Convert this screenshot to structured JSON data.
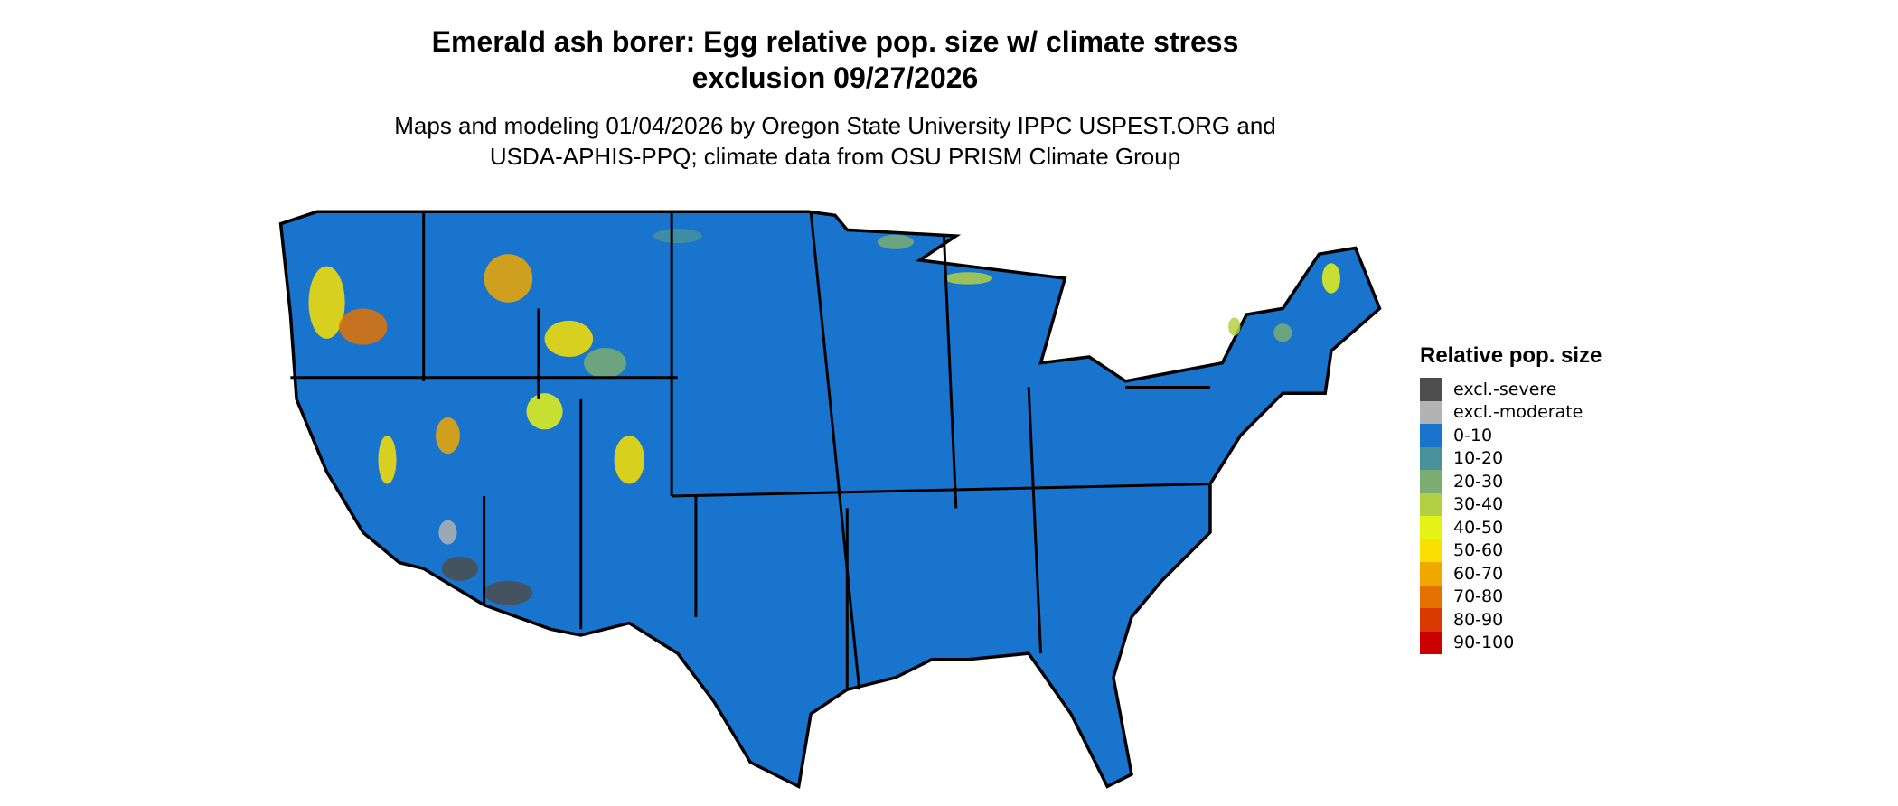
{
  "title_line1": "Emerald ash borer: Egg relative pop. size w/ climate stress",
  "title_line2": "exclusion 09/27/2026",
  "subtitle_line1": "Maps and modeling 01/04/2026 by Oregon State University IPPC USPEST.ORG and",
  "subtitle_line2": "USDA-APHIS-PPQ; climate data from OSU PRISM Climate Group",
  "legend": {
    "title": "Relative pop. size",
    "items": [
      {
        "label": "excl.-severe",
        "color": "#4d4d4d"
      },
      {
        "label": "excl.-moderate",
        "color": "#b3b3b3"
      },
      {
        "label": "0-10",
        "color": "#1874cd"
      },
      {
        "label": "10-20",
        "color": "#48919a"
      },
      {
        "label": "20-30",
        "color": "#7bad72"
      },
      {
        "label": "30-40",
        "color": "#b2d043"
      },
      {
        "label": "40-50",
        "color": "#e6f116"
      },
      {
        "label": "50-60",
        "color": "#f9e000"
      },
      {
        "label": "60-70",
        "color": "#f0a800"
      },
      {
        "label": "70-80",
        "color": "#e37200"
      },
      {
        "label": "80-90",
        "color": "#d83a00"
      },
      {
        "label": "90-100",
        "color": "#cc0000"
      }
    ]
  },
  "map": {
    "base_color": "#1874cd",
    "border_color": "#000000"
  }
}
